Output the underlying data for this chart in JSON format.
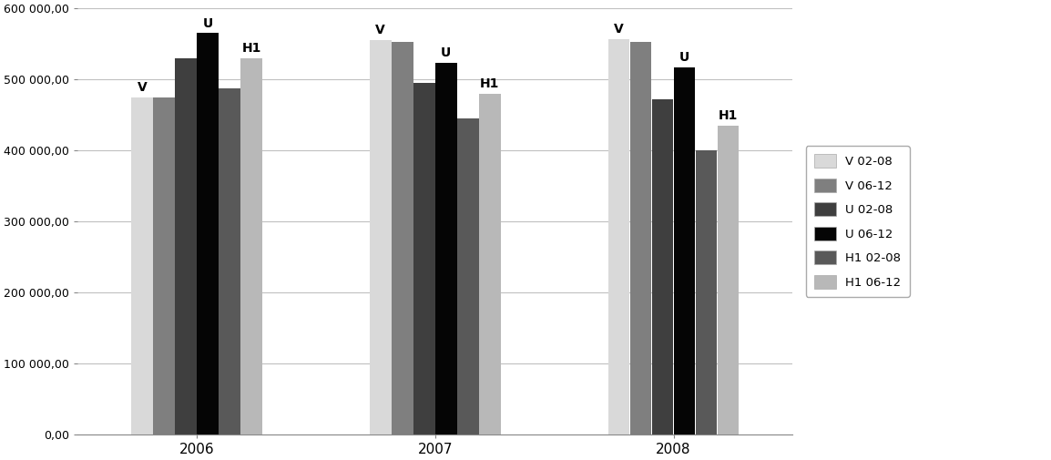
{
  "years": [
    "2006",
    "2007",
    "2008"
  ],
  "series": [
    {
      "label": "V 02-08",
      "color": "#d9d9d9",
      "values": [
        475000,
        555000,
        557000
      ]
    },
    {
      "label": "V 06-12",
      "color": "#7f7f7f",
      "values": [
        475000,
        553000,
        553000
      ]
    },
    {
      "label": "U 02-08",
      "color": "#3f3f3f",
      "values": [
        530000,
        495000,
        472000
      ]
    },
    {
      "label": "U 06-12",
      "color": "#050505",
      "values": [
        565000,
        523000,
        517000
      ]
    },
    {
      "label": "H1 02-08",
      "color": "#595959",
      "values": [
        487000,
        445000,
        400000
      ]
    },
    {
      "label": "H1 06-12",
      "color": "#b8b8b8",
      "values": [
        530000,
        480000,
        435000
      ]
    }
  ],
  "ylim": [
    0,
    600000
  ],
  "yticks": [
    0,
    100000,
    200000,
    300000,
    400000,
    500000,
    600000
  ],
  "background_color": "#ffffff",
  "annotation_series_idx": [
    [
      0,
      3,
      5
    ],
    [
      0,
      3,
      5
    ],
    [
      0,
      3,
      5
    ]
  ],
  "annotation_labels": [
    "V",
    "U",
    "H1"
  ],
  "group_width": 0.55,
  "bar_gap": 0.01
}
